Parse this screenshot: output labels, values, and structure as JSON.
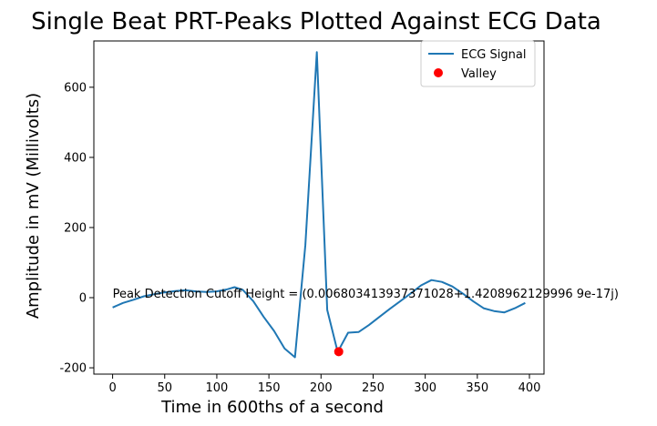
{
  "chart_data": {
    "type": "line",
    "title": "Single Beat PRT-Peaks Plotted Against ECG Data",
    "xlabel": "Time in 600ths of a second",
    "ylabel": "Amplitude in mV (Millivolts)",
    "xlim": [
      -18,
      414
    ],
    "ylim": [
      -218,
      732
    ],
    "xticks": [
      0,
      50,
      100,
      150,
      200,
      250,
      300,
      350,
      400
    ],
    "yticks": [
      -200,
      0,
      200,
      400,
      600
    ],
    "grid": false,
    "legend_position": "top-right",
    "series": [
      {
        "name": "ECG Signal",
        "kind": "line",
        "color": "#1f77b4",
        "x": [
          0,
          10,
          20,
          30,
          40,
          50,
          60,
          70,
          80,
          90,
          100,
          110,
          117,
          125,
          135,
          145,
          155,
          165,
          175,
          185,
          196,
          206,
          216,
          226,
          236,
          246,
          256,
          266,
          276,
          286,
          296,
          306,
          316,
          326,
          336,
          346,
          356,
          366,
          376,
          386,
          396
        ],
        "y": [
          -28,
          -15,
          -6,
          4,
          10,
          15,
          19,
          21,
          18,
          16,
          18,
          24,
          30,
          22,
          -10,
          -55,
          -95,
          -145,
          -170,
          150,
          700,
          -35,
          -155,
          -100,
          -98,
          -78,
          -55,
          -32,
          -10,
          12,
          35,
          50,
          45,
          32,
          12,
          -10,
          -30,
          -38,
          -42,
          -30,
          -15
        ]
      },
      {
        "name": "Valley",
        "kind": "marker",
        "color": "#ff0000",
        "x": [
          217
        ],
        "y": [
          -154
        ]
      }
    ],
    "annotation": {
      "text": "Peak Detection Cutoff Height = (0.006803413937371028+1.4208962129996 9e-17j)",
      "x": 0,
      "y": 0
    }
  }
}
